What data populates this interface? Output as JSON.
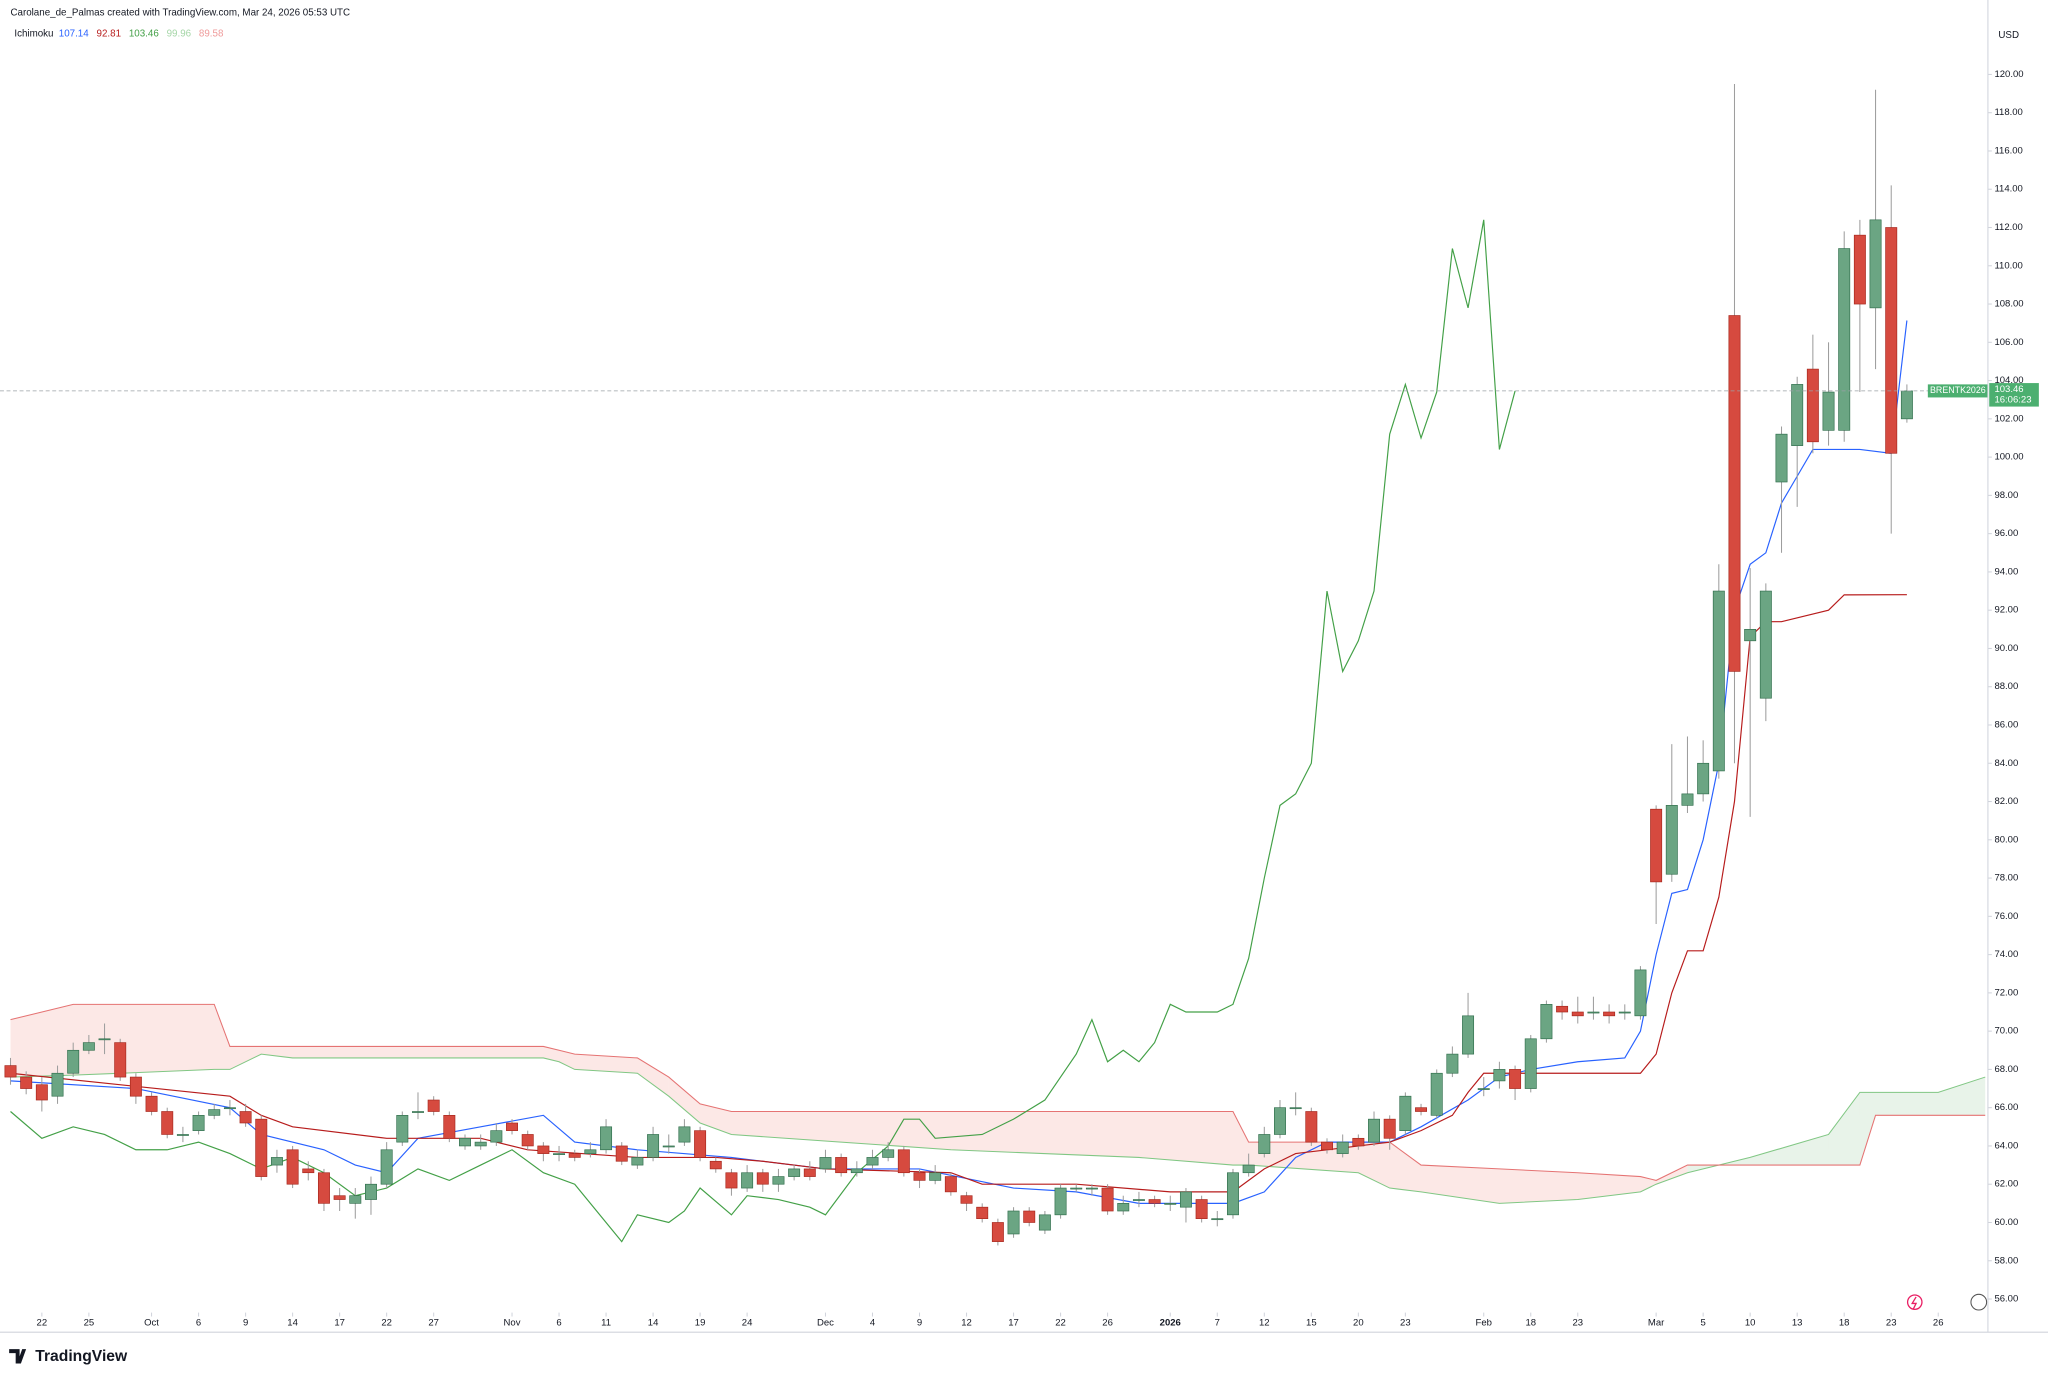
{
  "header": {
    "attribution": "Carolane_de_Palmas created with TradingView.com, Mar 24, 2026 05:53 UTC",
    "indicator": "Ichimoku",
    "indicator_values": [
      {
        "label": "107.14",
        "color": "#2962ff"
      },
      {
        "label": "92.81",
        "color": "#b71c1c"
      },
      {
        "label": "103.46",
        "color": "#43a047"
      },
      {
        "label": "99.96",
        "color": "#a5d6a7"
      },
      {
        "label": "89.58",
        "color": "#ef9a9a"
      }
    ]
  },
  "chart_data": {
    "type": "candlestick",
    "currency": "USD",
    "up_color": "#6ba583",
    "down_color": "#d64a3f",
    "up_border": "#2f6d4b",
    "down_border": "#a5261c",
    "wick_color": "#9e9e9e",
    "grid": false,
    "xlim": [
      -0.67,
      126.17
    ],
    "ylim": [
      55.29,
      123.89
    ],
    "open": [
      68.2,
      67.6,
      67.2,
      66.6,
      67.8,
      69.0,
      69.6,
      69.4,
      67.6,
      66.6,
      65.8,
      64.6,
      64.8,
      65.6,
      66.0,
      65.8,
      65.4,
      63.0,
      63.8,
      62.8,
      62.6,
      61.4,
      61.0,
      61.2,
      62.0,
      64.2,
      65.8,
      66.4,
      65.6,
      64.0,
      64.0,
      64.2,
      65.2,
      64.6,
      64.0,
      63.6,
      63.6,
      63.6,
      63.8,
      64.0,
      63.0,
      63.4,
      64.0,
      64.2,
      64.8,
      63.2,
      62.6,
      61.8,
      62.6,
      62.0,
      62.4,
      62.8,
      62.8,
      63.4,
      62.6,
      63.0,
      63.4,
      63.8,
      62.6,
      62.2,
      62.4,
      61.4,
      60.8,
      60.0,
      59.4,
      60.6,
      59.6,
      60.4,
      61.8,
      61.8,
      61.8,
      60.6,
      61.2,
      61.2,
      61.0,
      60.8,
      61.2,
      60.2,
      60.4,
      62.6,
      63.6,
      64.6,
      66.0,
      65.8,
      64.2,
      63.6,
      64.4,
      64.2,
      65.4,
      64.8,
      66.0,
      65.6,
      67.8,
      68.8,
      67.0,
      67.4,
      68.0,
      67.0,
      69.6,
      71.3,
      71.0,
      71.0,
      71.0,
      71.0,
      70.8,
      81.6,
      78.2,
      81.8,
      82.4,
      83.6,
      107.4,
      90.4,
      87.4,
      98.7,
      100.6,
      104.6,
      101.4,
      101.4,
      111.6,
      107.8,
      112.0,
      102.0
    ],
    "high": [
      68.6,
      67.9,
      67.6,
      68.2,
      69.4,
      69.8,
      70.4,
      69.6,
      67.8,
      66.8,
      66.0,
      65.0,
      65.8,
      66.2,
      66.4,
      66.2,
      65.6,
      63.8,
      64.0,
      63.2,
      62.8,
      61.8,
      61.8,
      62.4,
      64.2,
      65.8,
      66.8,
      66.6,
      65.8,
      64.6,
      64.6,
      65.2,
      65.4,
      64.8,
      64.2,
      64.0,
      63.8,
      64.2,
      65.4,
      64.2,
      63.8,
      65.0,
      64.6,
      65.4,
      65.0,
      63.4,
      62.8,
      63.0,
      62.8,
      62.8,
      63.0,
      63.2,
      63.8,
      63.6,
      63.2,
      63.8,
      64.2,
      64.0,
      62.8,
      63.0,
      62.6,
      61.6,
      61.0,
      60.2,
      60.8,
      60.8,
      60.6,
      62.0,
      62.0,
      62.0,
      62.0,
      61.4,
      61.6,
      61.4,
      61.4,
      61.8,
      61.4,
      60.6,
      62.8,
      63.6,
      65.0,
      66.4,
      66.8,
      66.0,
      64.4,
      64.6,
      64.6,
      65.8,
      65.6,
      66.8,
      66.2,
      68.0,
      69.2,
      72.0,
      67.6,
      68.4,
      68.2,
      69.8,
      71.6,
      71.6,
      71.8,
      71.8,
      71.4,
      71.4,
      73.4,
      81.8,
      85.0,
      85.4,
      85.2,
      94.4,
      119.5,
      94.2,
      93.4,
      101.6,
      104.2,
      106.4,
      106.0,
      111.8,
      112.4,
      119.2,
      114.2,
      103.8
    ],
    "low": [
      67.2,
      66.7,
      65.8,
      66.2,
      67.6,
      68.8,
      68.8,
      67.4,
      66.2,
      65.6,
      64.4,
      64.2,
      64.6,
      65.4,
      65.6,
      65.0,
      62.2,
      62.6,
      61.8,
      62.2,
      60.6,
      60.6,
      60.2,
      60.4,
      61.8,
      64.0,
      65.4,
      65.6,
      64.2,
      63.8,
      63.8,
      64.0,
      64.6,
      63.8,
      63.2,
      63.2,
      63.2,
      63.4,
      63.6,
      63.0,
      62.8,
      63.2,
      63.6,
      64.0,
      63.2,
      62.6,
      61.4,
      61.6,
      61.6,
      61.6,
      62.2,
      62.2,
      62.6,
      62.4,
      62.4,
      62.8,
      63.2,
      62.4,
      61.8,
      62.0,
      61.4,
      60.6,
      60.0,
      58.8,
      59.2,
      59.8,
      59.4,
      60.2,
      61.6,
      61.4,
      60.4,
      60.4,
      60.8,
      60.8,
      60.6,
      60.0,
      60.0,
      59.8,
      60.2,
      62.4,
      63.4,
      64.4,
      65.6,
      64.0,
      63.6,
      63.4,
      63.8,
      64.0,
      63.8,
      64.6,
      65.6,
      65.4,
      67.6,
      68.6,
      66.6,
      67.0,
      66.4,
      66.8,
      69.4,
      70.6,
      70.4,
      70.6,
      70.4,
      70.6,
      70.6,
      75.6,
      77.8,
      81.4,
      82.0,
      83.2,
      84.0,
      81.2,
      86.2,
      95.0,
      97.4,
      100.2,
      100.6,
      100.8,
      103.4,
      104.6,
      96.0,
      101.8
    ],
    "close": [
      67.6,
      67.0,
      66.4,
      67.8,
      69.0,
      69.4,
      69.6,
      67.6,
      66.6,
      65.8,
      64.6,
      64.6,
      65.6,
      65.9,
      66.0,
      65.2,
      62.4,
      63.4,
      62.0,
      62.6,
      61.0,
      61.2,
      61.4,
      62.0,
      63.8,
      65.6,
      65.8,
      65.8,
      64.4,
      64.4,
      64.2,
      64.8,
      64.8,
      64.0,
      63.6,
      63.6,
      63.4,
      63.8,
      65.0,
      63.2,
      63.4,
      64.6,
      64.0,
      65.0,
      63.4,
      62.8,
      61.8,
      62.6,
      62.0,
      62.4,
      62.8,
      62.4,
      63.4,
      62.6,
      62.8,
      63.4,
      63.8,
      62.6,
      62.2,
      62.6,
      61.6,
      61.0,
      60.2,
      59.0,
      60.6,
      60.0,
      60.4,
      61.8,
      61.8,
      61.8,
      60.6,
      61.0,
      61.2,
      61.0,
      61.0,
      61.6,
      60.2,
      60.2,
      62.6,
      63.0,
      64.6,
      66.0,
      66.0,
      64.2,
      63.8,
      64.2,
      64.0,
      65.4,
      64.4,
      66.6,
      65.8,
      67.8,
      68.8,
      70.8,
      67.0,
      68.0,
      67.0,
      69.6,
      71.4,
      71.0,
      70.8,
      71.0,
      70.8,
      71.0,
      73.2,
      77.8,
      81.8,
      82.4,
      84.0,
      93.0,
      88.8,
      91.0,
      93.0,
      101.2,
      103.8,
      100.8,
      103.4,
      110.9,
      108.0,
      112.4,
      100.2,
      103.46
    ],
    "lines": [
      {
        "color": "#2962ff",
        "x": [
          0,
          8,
          14,
          16,
          20,
          22,
          24,
          26,
          30,
          34,
          36,
          40,
          46,
          52,
          58,
          64,
          68,
          72,
          78,
          80,
          82,
          84,
          88,
          90,
          93,
          95,
          97,
          100,
          103,
          104,
          105,
          106,
          107,
          108,
          109,
          110,
          111,
          112,
          113,
          114,
          115,
          118,
          120,
          121
        ],
        "values": [
          67.4,
          67.0,
          66.0,
          64.6,
          63.8,
          63.0,
          62.6,
          64.4,
          65.0,
          65.6,
          64.2,
          63.8,
          63.4,
          62.8,
          62.8,
          61.8,
          61.6,
          61.0,
          61.0,
          61.6,
          63.4,
          64.2,
          64.2,
          65.0,
          66.4,
          67.6,
          68.0,
          68.4,
          68.6,
          70.0,
          74.0,
          77.2,
          77.4,
          80.0,
          84.0,
          92.0,
          94.4,
          95.0,
          97.6,
          99.0,
          100.4,
          100.4,
          100.2,
          107.14
        ]
      },
      {
        "color": "#b71c1c",
        "x": [
          0,
          14,
          16,
          18,
          24,
          30,
          33,
          40,
          45,
          48,
          52,
          60,
          62,
          68,
          74,
          78,
          80,
          82,
          84,
          88,
          90,
          92,
          93,
          94,
          104,
          105,
          106,
          107,
          108,
          109,
          110,
          111,
          112,
          113,
          116,
          117,
          121
        ],
        "values": [
          67.8,
          66.6,
          65.6,
          65.0,
          64.4,
          64.4,
          63.8,
          63.4,
          63.4,
          63.2,
          62.8,
          62.6,
          62.0,
          62.0,
          61.6,
          61.6,
          62.8,
          63.6,
          63.8,
          64.2,
          64.8,
          65.6,
          66.8,
          67.8,
          67.8,
          68.8,
          72.0,
          74.2,
          74.2,
          77.0,
          82.0,
          90.6,
          91.4,
          91.4,
          92.0,
          92.8,
          92.81
        ]
      },
      {
        "color": "#43a047",
        "x": [
          0,
          2,
          4,
          6,
          8,
          10,
          12,
          14,
          16,
          18,
          20,
          22,
          24,
          26,
          28,
          30,
          32,
          34,
          36,
          38,
          39,
          40,
          42,
          43,
          44,
          46,
          47,
          49,
          51,
          52,
          54,
          56,
          57,
          58,
          59,
          62,
          64,
          66,
          67,
          68,
          69,
          70,
          71,
          72,
          73,
          74,
          75,
          76,
          77,
          78,
          79,
          80,
          81,
          82,
          83,
          84,
          85,
          86,
          87,
          88,
          89,
          90,
          91,
          92,
          93,
          94,
          95,
          96
        ],
        "values": [
          65.8,
          64.4,
          65.0,
          64.6,
          63.8,
          63.8,
          64.2,
          63.6,
          62.8,
          63.4,
          62.6,
          61.4,
          61.8,
          62.8,
          62.2,
          63.0,
          63.8,
          62.6,
          62.0,
          60.0,
          59.0,
          60.4,
          60.0,
          60.6,
          61.8,
          60.4,
          61.4,
          61.2,
          60.8,
          60.4,
          62.6,
          64.0,
          65.4,
          65.4,
          64.4,
          64.6,
          65.4,
          66.4,
          67.6,
          68.8,
          70.6,
          68.4,
          69.0,
          68.4,
          69.4,
          71.4,
          71.0,
          71.0,
          71.0,
          71.4,
          73.8,
          78.0,
          81.8,
          82.4,
          84.0,
          93.0,
          88.8,
          90.4,
          93.0,
          101.2,
          103.8,
          101.0,
          103.4,
          110.9,
          107.8,
          112.4,
          100.4,
          103.46
        ]
      }
    ],
    "cloud": {
      "up_color": "#43a047",
      "down_color": "#f28b82",
      "x": [
        0,
        4,
        13,
        14,
        16,
        18,
        34,
        35,
        36,
        40,
        42,
        44,
        46,
        60,
        72,
        78,
        79,
        86,
        88,
        90,
        95,
        100,
        104,
        105,
        107,
        111,
        116,
        118,
        119,
        123,
        126
      ],
      "span_a": [
        67.6,
        67.7,
        68.0,
        68.0,
        68.8,
        68.6,
        68.6,
        68.4,
        68.0,
        67.8,
        66.6,
        65.2,
        64.6,
        63.8,
        63.4,
        63.0,
        63.0,
        62.6,
        61.8,
        61.6,
        61.0,
        61.2,
        61.6,
        62.0,
        62.6,
        63.4,
        64.6,
        66.8,
        66.8,
        66.8,
        67.6
      ],
      "span_b": [
        70.6,
        71.4,
        71.4,
        69.2,
        69.2,
        69.2,
        69.2,
        69.0,
        68.8,
        68.6,
        67.6,
        66.2,
        65.8,
        65.8,
        65.8,
        65.8,
        64.2,
        64.2,
        64.2,
        63.0,
        62.8,
        62.6,
        62.4,
        62.2,
        63.0,
        63.0,
        63.0,
        63.0,
        65.6,
        65.6,
        65.6
      ]
    },
    "yticks": [
      {
        "value": 56,
        "label": "56.00"
      },
      {
        "value": 58,
        "label": "58.00"
      },
      {
        "value": 60,
        "label": "60.00"
      },
      {
        "value": 62,
        "label": "62.00"
      },
      {
        "value": 64,
        "label": "64.00"
      },
      {
        "value": 66,
        "label": "66.00"
      },
      {
        "value": 68,
        "label": "68.00"
      },
      {
        "value": 70,
        "label": "70.00"
      },
      {
        "value": 72,
        "label": "72.00"
      },
      {
        "value": 74,
        "label": "74.00"
      },
      {
        "value": 76,
        "label": "76.00"
      },
      {
        "value": 78,
        "label": "78.00"
      },
      {
        "value": 80,
        "label": "80.00"
      },
      {
        "value": 82,
        "label": "82.00"
      },
      {
        "value": 84,
        "label": "84.00"
      },
      {
        "value": 86,
        "label": "86.00"
      },
      {
        "value": 88,
        "label": "88.00"
      },
      {
        "value": 90,
        "label": "90.00"
      },
      {
        "value": 92,
        "label": "92.00"
      },
      {
        "value": 94,
        "label": "94.00"
      },
      {
        "value": 96,
        "label": "96.00"
      },
      {
        "value": 98,
        "label": "98.00"
      },
      {
        "value": 100,
        "label": "100.00"
      },
      {
        "value": 102,
        "label": "102.00"
      },
      {
        "value": 104,
        "label": "104.00"
      },
      {
        "value": 106,
        "label": "106.00"
      },
      {
        "value": 108,
        "label": "108.00"
      },
      {
        "value": 110,
        "label": "110.00"
      },
      {
        "value": 112,
        "label": "112.00"
      },
      {
        "value": 114,
        "label": "114.00"
      },
      {
        "value": 116,
        "label": "116.00"
      },
      {
        "value": 118,
        "label": "118.00"
      },
      {
        "value": 120,
        "label": "120.00"
      }
    ],
    "xticks": [
      {
        "value": 2,
        "label": "22"
      },
      {
        "value": 5,
        "label": "25"
      },
      {
        "value": 9,
        "label": "Oct"
      },
      {
        "value": 12,
        "label": "6"
      },
      {
        "value": 15,
        "label": "9"
      },
      {
        "value": 18,
        "label": "14"
      },
      {
        "value": 21,
        "label": "17"
      },
      {
        "value": 24,
        "label": "22"
      },
      {
        "value": 27,
        "label": "27"
      },
      {
        "value": 32,
        "label": "Nov"
      },
      {
        "value": 35,
        "label": "6"
      },
      {
        "value": 38,
        "label": "11"
      },
      {
        "value": 41,
        "label": "14"
      },
      {
        "value": 44,
        "label": "19"
      },
      {
        "value": 47,
        "label": "24"
      },
      {
        "value": 52,
        "label": "Dec"
      },
      {
        "value": 55,
        "label": "4"
      },
      {
        "value": 58,
        "label": "9"
      },
      {
        "value": 61,
        "label": "12"
      },
      {
        "value": 64,
        "label": "17"
      },
      {
        "value": 67,
        "label": "22"
      },
      {
        "value": 70,
        "label": "26"
      },
      {
        "value": 74,
        "label": "2026"
      },
      {
        "value": 77,
        "label": "7"
      },
      {
        "value": 80,
        "label": "12"
      },
      {
        "value": 83,
        "label": "15"
      },
      {
        "value": 86,
        "label": "20"
      },
      {
        "value": 89,
        "label": "23"
      },
      {
        "value": 94,
        "label": "Feb"
      },
      {
        "value": 97,
        "label": "18"
      },
      {
        "value": 100,
        "label": "23"
      },
      {
        "value": 105,
        "label": "Mar"
      },
      {
        "value": 108,
        "label": "5"
      },
      {
        "value": 111,
        "label": "10"
      },
      {
        "value": 114,
        "label": "13"
      },
      {
        "value": 117,
        "label": "18"
      },
      {
        "value": 120,
        "label": "23"
      },
      {
        "value": 123,
        "label": "26"
      }
    ],
    "price_tag": {
      "symbol": "BRENTK2026",
      "price": "103.46",
      "countdown": "16:06:23",
      "color": "#4caf70"
    }
  },
  "footer": {
    "brand": "TradingView"
  }
}
